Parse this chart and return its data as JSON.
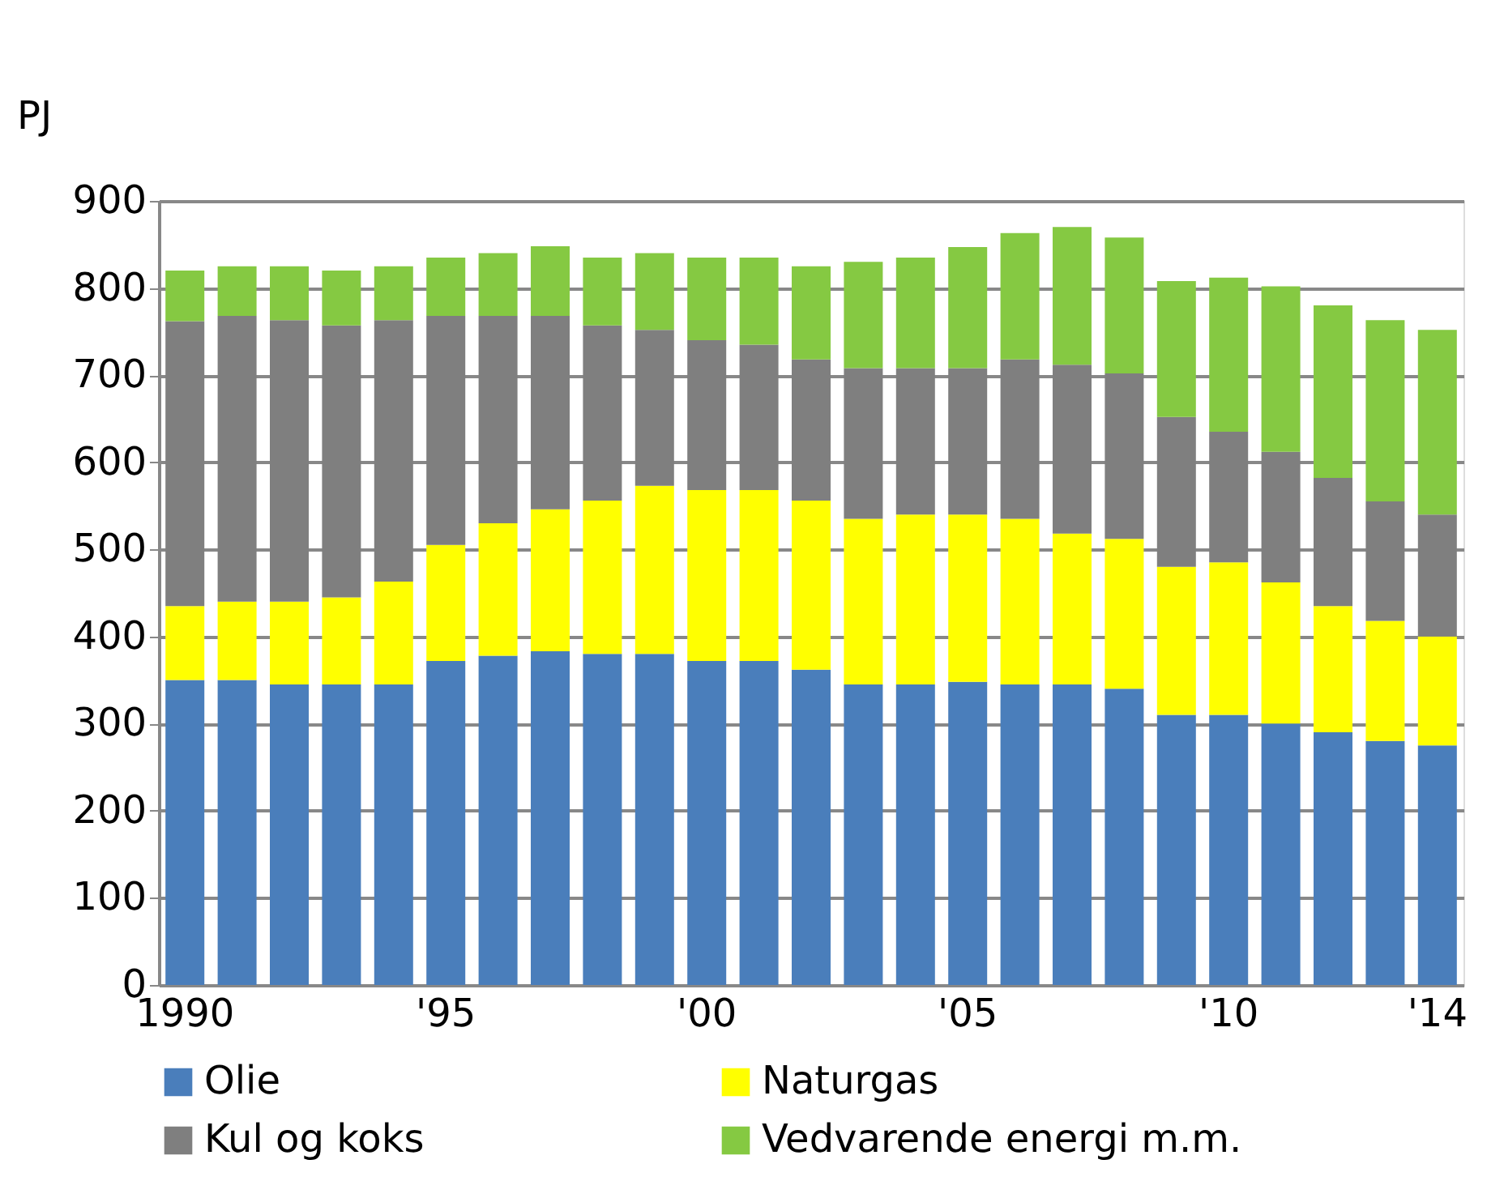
{
  "chart_data": {
    "type": "bar",
    "stacked": true,
    "ylabel": "PJ",
    "categories": [
      "1990",
      null,
      null,
      null,
      null,
      "'95",
      null,
      null,
      null,
      null,
      "'00",
      null,
      null,
      null,
      null,
      "'05",
      null,
      null,
      null,
      null,
      "'10",
      null,
      null,
      null,
      "'14"
    ],
    "series": [
      {
        "name": "Olie",
        "color": "#4a7ebb",
        "values": [
          350,
          350,
          345,
          345,
          345,
          372,
          378,
          383,
          380,
          380,
          372,
          372,
          362,
          345,
          345,
          348,
          345,
          345,
          340,
          310,
          310,
          300,
          290,
          280,
          275
        ]
      },
      {
        "name": "Naturgas",
        "color": "#ffff00",
        "values": [
          85,
          90,
          95,
          100,
          118,
          133,
          152,
          163,
          176,
          193,
          196,
          196,
          194,
          190,
          195,
          192,
          190,
          173,
          172,
          170,
          175,
          162,
          145,
          138,
          125
        ]
      },
      {
        "name": "Kul og koks",
        "color": "#7f7f7f",
        "values": [
          327,
          328,
          323,
          312,
          300,
          263,
          238,
          222,
          201,
          179,
          172,
          167,
          162,
          173,
          168,
          168,
          183,
          194,
          190,
          172,
          150,
          150,
          147,
          137,
          140
        ]
      },
      {
        "name": "Vedvarende energi m.m.",
        "color": "#85c942",
        "values": [
          58,
          57,
          62,
          63,
          62,
          67,
          72,
          80,
          78,
          88,
          95,
          100,
          107,
          122,
          127,
          139,
          145,
          158,
          156,
          156,
          177,
          190,
          198,
          208,
          212
        ]
      }
    ],
    "ylim": [
      0,
      900
    ],
    "yticks": [
      0,
      100,
      200,
      300,
      400,
      500,
      600,
      700,
      800,
      900
    ],
    "grid": "y",
    "legend": "bottom"
  }
}
